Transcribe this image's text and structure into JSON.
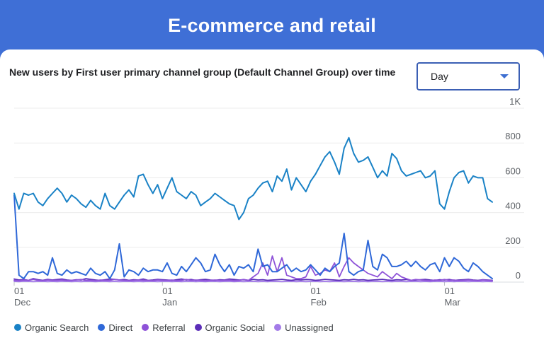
{
  "header": {
    "title": "E-commerce and retail"
  },
  "card": {
    "title": "New users by First user primary channel group (Default Channel Group) over time",
    "dropdown": {
      "value": "Day"
    }
  },
  "chart_data": {
    "type": "line",
    "title": "New users by First user primary channel group (Default Channel Group) over time",
    "x_ticks": [
      {
        "day": "01",
        "month": "Dec",
        "index": 0
      },
      {
        "day": "01",
        "month": "Jan",
        "index": 31
      },
      {
        "day": "01",
        "month": "Feb",
        "index": 62
      },
      {
        "day": "01",
        "month": "Mar",
        "index": 90
      }
    ],
    "y_ticks": [
      {
        "value": 0,
        "label": "0"
      },
      {
        "value": 200,
        "label": "200"
      },
      {
        "value": 400,
        "label": "400"
      },
      {
        "value": 600,
        "label": "600"
      },
      {
        "value": 800,
        "label": "800"
      },
      {
        "value": 1000,
        "label": "1K"
      }
    ],
    "ylim": [
      0,
      1000
    ],
    "grid": true,
    "legend_position": "bottom-left",
    "series": [
      {
        "name": "Organic Search",
        "color": "#1a82c6",
        "values": [
          510,
          420,
          510,
          500,
          510,
          460,
          440,
          480,
          510,
          540,
          510,
          460,
          500,
          480,
          450,
          430,
          470,
          440,
          420,
          510,
          440,
          420,
          460,
          500,
          530,
          490,
          610,
          620,
          560,
          510,
          560,
          480,
          540,
          600,
          520,
          500,
          480,
          520,
          500,
          440,
          460,
          480,
          510,
          490,
          470,
          450,
          440,
          360,
          400,
          480,
          500,
          540,
          570,
          580,
          520,
          610,
          580,
          650,
          530,
          600,
          560,
          520,
          580,
          620,
          670,
          720,
          750,
          690,
          620,
          770,
          830,
          740,
          690,
          700,
          720,
          660,
          600,
          640,
          610,
          740,
          710,
          640,
          610,
          620,
          630,
          640,
          600,
          610,
          640,
          450,
          420,
          520,
          600,
          630,
          640,
          570,
          610,
          600,
          600,
          480,
          460
        ]
      },
      {
        "name": "Direct",
        "color": "#2f68d8",
        "values": [
          500,
          40,
          20,
          60,
          60,
          50,
          60,
          40,
          140,
          50,
          40,
          70,
          50,
          60,
          50,
          40,
          80,
          50,
          40,
          60,
          20,
          70,
          220,
          30,
          70,
          60,
          40,
          80,
          60,
          70,
          70,
          60,
          110,
          50,
          40,
          90,
          60,
          100,
          140,
          110,
          60,
          70,
          160,
          100,
          60,
          100,
          40,
          90,
          80,
          100,
          60,
          190,
          90,
          100,
          60,
          60,
          80,
          100,
          60,
          80,
          60,
          70,
          100,
          70,
          40,
          80,
          60,
          90,
          110,
          280,
          60,
          40,
          60,
          70,
          240,
          90,
          70,
          160,
          140,
          90,
          90,
          100,
          120,
          90,
          120,
          90,
          70,
          100,
          110,
          60,
          140,
          90,
          140,
          120,
          80,
          60,
          110,
          90,
          60,
          40,
          20
        ]
      },
      {
        "name": "Referral",
        "color": "#8e52d8",
        "values": [
          10,
          8,
          12,
          10,
          15,
          10,
          8,
          12,
          10,
          10,
          12,
          8,
          10,
          12,
          15,
          10,
          10,
          8,
          12,
          10,
          10,
          15,
          12,
          10,
          8,
          10,
          12,
          10,
          10,
          8,
          12,
          10,
          10,
          12,
          8,
          10,
          15,
          10,
          12,
          10,
          8,
          10,
          12,
          10,
          10,
          12,
          8,
          10,
          15,
          10,
          30,
          50,
          110,
          40,
          150,
          60,
          140,
          40,
          30,
          20,
          20,
          30,
          90,
          40,
          50,
          70,
          60,
          110,
          30,
          90,
          140,
          110,
          90,
          70,
          50,
          40,
          30,
          60,
          40,
          20,
          50,
          30,
          20,
          10,
          15,
          12,
          10,
          8,
          12,
          10,
          15,
          10,
          12,
          8,
          10,
          12,
          10,
          8,
          12,
          10,
          8
        ]
      },
      {
        "name": "Organic Social",
        "color": "#5b2db8",
        "values": [
          18,
          12,
          15,
          10,
          20,
          14,
          10,
          16,
          12,
          15,
          18,
          12,
          10,
          14,
          12,
          20,
          16,
          12,
          10,
          14,
          18,
          16,
          12,
          15,
          10,
          14,
          12,
          18,
          10,
          12,
          16,
          14,
          12,
          10,
          14,
          18,
          12,
          15,
          10,
          14,
          16,
          12,
          10,
          14,
          12,
          18,
          15,
          12,
          14,
          10,
          16,
          12,
          14,
          10,
          12,
          14,
          16,
          12,
          10,
          14,
          12,
          15,
          14,
          10,
          12,
          16,
          14,
          12,
          10,
          14,
          12,
          16,
          12,
          14,
          10,
          12,
          14,
          16,
          12,
          10,
          14,
          12,
          15,
          10,
          12,
          14,
          16,
          12,
          10,
          14,
          12,
          15,
          10,
          12,
          14,
          16,
          12,
          10,
          14,
          12,
          10
        ]
      },
      {
        "name": "Unassigned",
        "color": "#a37be8",
        "values": [
          4,
          3,
          5,
          4,
          3,
          4,
          5,
          3,
          4,
          3,
          4,
          5,
          3,
          4,
          3,
          5,
          4,
          3,
          4,
          5,
          3,
          4,
          3,
          4,
          5,
          3,
          4,
          3,
          5,
          4,
          3,
          4,
          5,
          3,
          4,
          3,
          4,
          5,
          3,
          4,
          3,
          5,
          4,
          3,
          4,
          5,
          3,
          4,
          3,
          4,
          5,
          3,
          4,
          3,
          5,
          4,
          3,
          4,
          5,
          3,
          4,
          3,
          4,
          5,
          3,
          4,
          3,
          5,
          4,
          3,
          4,
          5,
          3,
          4,
          3,
          4,
          5,
          3,
          4,
          3,
          5,
          4,
          3,
          4,
          5,
          3,
          4,
          3,
          4,
          5,
          3,
          4,
          3,
          5,
          4,
          3,
          4,
          5,
          3,
          4,
          3
        ]
      }
    ]
  }
}
